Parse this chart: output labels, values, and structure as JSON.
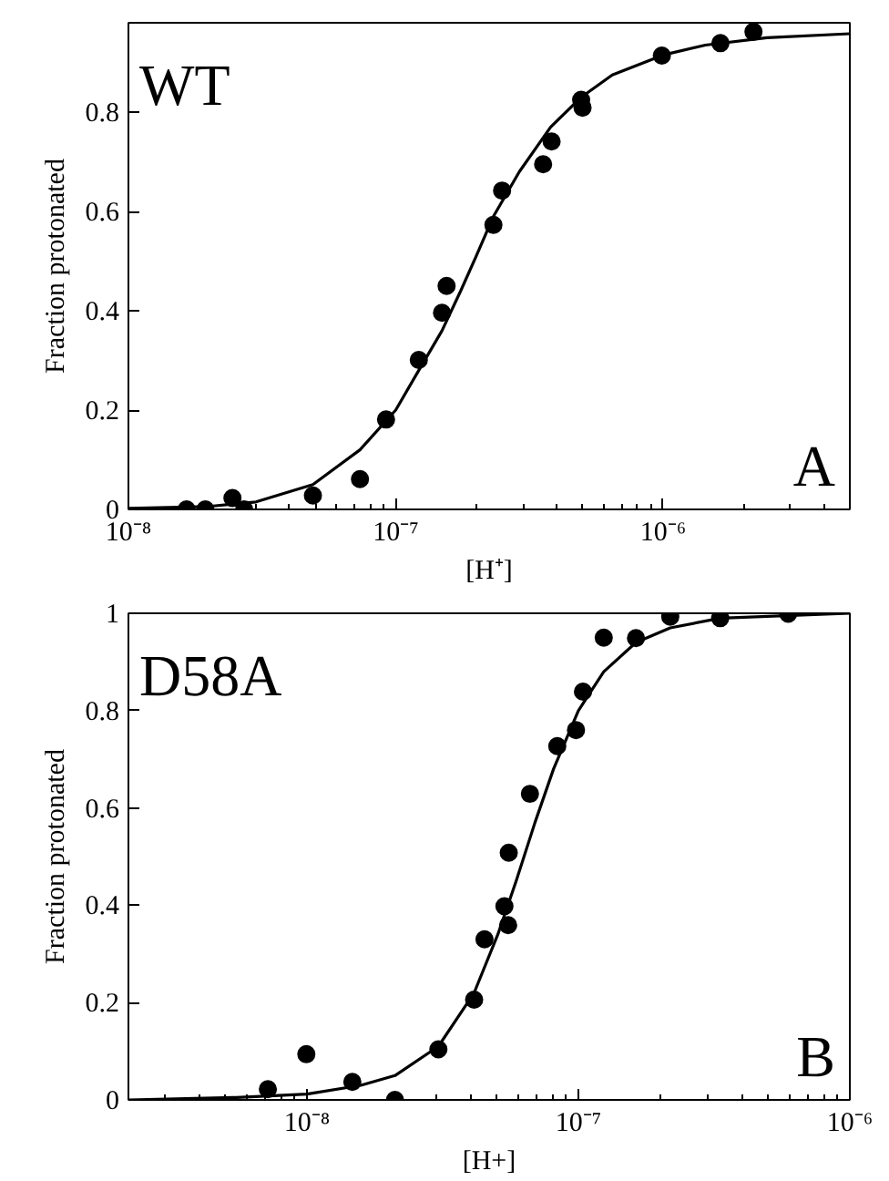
{
  "chart_data": [
    {
      "type": "scatter",
      "xlabel": "[H⁺]",
      "ylabel": "Fraction protonated",
      "log": "x",
      "annotations": [
        "WT",
        "A"
      ],
      "xlim": [
        1e-08,
        5e-06
      ],
      "ylim": [
        0,
        0.98
      ],
      "xticks": [
        {
          "value": 1e-08,
          "label": "10⁻⁸"
        },
        {
          "value": 1e-07,
          "label": "10⁻⁷"
        },
        {
          "value": 1e-06,
          "label": "10⁻⁶"
        }
      ],
      "yticks": [
        0,
        0.2,
        0.4,
        0.6,
        0.8
      ],
      "grid": false,
      "series": [
        {
          "marker": "circle",
          "color": "#000000",
          "x": [
            1.65e-08,
            1.94e-08,
            2.45e-08,
            2.71e-08,
            4.9e-08,
            7.35e-08,
            9.2e-08,
            1.22e-07,
            1.49e-07,
            1.55e-07,
            2.32e-07,
            2.5e-07,
            3.56e-07,
            3.83e-07,
            4.94e-07,
            5e-07,
            9.9e-07,
            1.64e-06,
            2.18e-06
          ],
          "values": [
            0,
            0,
            0.023,
            0,
            0.028,
            0.061,
            0.181,
            0.301,
            0.396,
            0.45,
            0.573,
            0.642,
            0.695,
            0.741,
            0.825,
            0.809,
            0.914,
            0.939,
            0.962
          ]
        },
        {
          "type": "line",
          "line_style": "solid",
          "color": "#000000",
          "x": [
            1e-08,
            2e-08,
            3e-08,
            4.9e-08,
            7.35e-08,
            1e-07,
            1.22e-07,
            1.49e-07,
            1.75e-07,
            2e-07,
            2.32e-07,
            2.9e-07,
            3.8e-07,
            4.94e-07,
            6.46e-07,
            1e-06,
            1.44e-06,
            2.45e-06,
            5e-06
          ],
          "values": [
            0.002,
            0.006,
            0.015,
            0.05,
            0.12,
            0.2,
            0.28,
            0.36,
            0.44,
            0.51,
            0.59,
            0.68,
            0.77,
            0.83,
            0.875,
            0.915,
            0.935,
            0.95,
            0.958
          ]
        }
      ]
    },
    {
      "type": "scatter",
      "xlabel": "[H+]",
      "ylabel": "Fraction protonated",
      "log": "x",
      "annotations": [
        "D58A",
        "B"
      ],
      "xlim": [
        2.2e-09,
        1e-06
      ],
      "ylim": [
        0,
        1
      ],
      "xticks": [
        {
          "value": 1e-08,
          "label": "10⁻⁸"
        },
        {
          "value": 1e-07,
          "label": "10⁻⁷"
        },
        {
          "value": 1e-06,
          "label": "10⁻⁶"
        }
      ],
      "yticks": [
        0,
        0.2,
        0.4,
        0.6,
        0.8,
        1
      ],
      "grid": false,
      "series": [
        {
          "marker": "circle",
          "color": "#000000",
          "x": [
            7.18e-09,
            9.95e-09,
            1.47e-08,
            2.11e-08,
            3.05e-08,
            4.13e-08,
            4.51e-08,
            5.34e-08,
            5.51e-08,
            5.54e-08,
            6.63e-08,
            8.36e-08,
            9.8e-08,
            1.04e-07,
            1.24e-07,
            1.63e-07,
            2.18e-07,
            3.33e-07,
            5.93e-07
          ],
          "values": [
            0.022,
            0.094,
            0.037,
            0,
            0.104,
            0.206,
            0.33,
            0.398,
            0.359,
            0.508,
            0.629,
            0.727,
            0.76,
            0.839,
            0.95,
            0.949,
            0.993,
            0.99,
            0.999
          ]
        },
        {
          "type": "line",
          "line_style": "solid",
          "color": "#000000",
          "x": [
            2.2e-09,
            5.5e-09,
            1e-08,
            1.58e-08,
            2.11e-08,
            3.05e-08,
            4.13e-08,
            5.05e-08,
            5.9e-08,
            6.92e-08,
            8.1e-08,
            1e-07,
            1.24e-07,
            1.63e-07,
            2.18e-07,
            3.33e-07,
            1e-06
          ],
          "values": [
            0,
            0.005,
            0.012,
            0.03,
            0.05,
            0.11,
            0.22,
            0.34,
            0.45,
            0.57,
            0.68,
            0.8,
            0.88,
            0.94,
            0.97,
            0.99,
            1.0
          ]
        }
      ]
    }
  ]
}
